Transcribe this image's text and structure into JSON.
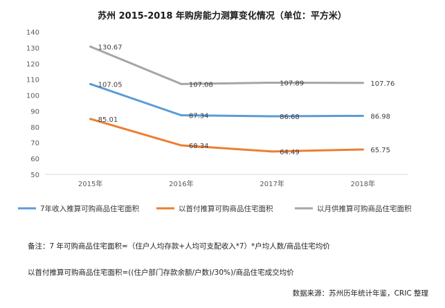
{
  "chart_data": {
    "type": "line",
    "title": "苏州 2015-2018 年购房能力测算变化情况（单位：平方米）",
    "categories": [
      "2015年",
      "2016年",
      "2017年",
      "2018年"
    ],
    "ylim": [
      50,
      140
    ],
    "yticks": [
      50,
      60,
      70,
      80,
      90,
      100,
      110,
      120,
      130,
      140
    ],
    "grid": false,
    "legend_position": "bottom",
    "series": [
      {
        "name": "7年收入推算可购商品住宅面积",
        "color": "#5b9bd5",
        "values": [
          107.05,
          87.34,
          86.68,
          86.98
        ],
        "labels": [
          "107.05",
          "87.34",
          "86.68",
          "86.98"
        ]
      },
      {
        "name": "以首付推算可购商品住宅面积",
        "color": "#ed7d31",
        "values": [
          85.01,
          68.34,
          64.49,
          65.75
        ],
        "labels": [
          "85.01",
          "68.34",
          "64.49",
          "65.75"
        ]
      },
      {
        "name": "以月供推算可购商品住宅面积",
        "color": "#a5a5a5",
        "values": [
          130.67,
          107.08,
          107.89,
          107.76
        ],
        "labels": [
          "130.67",
          "107.08",
          "107.89",
          "107.76"
        ]
      }
    ]
  },
  "notes": {
    "line1": "备注：7 年可购商品住宅面积=（住户人均存款+人均可支配收入*7）*户均人数/商品住宅均价",
    "line2": "以首付推算可购商品住宅面积=((住户部门存款余额/户数)/30%)/商品住宅成交均价",
    "source": "数据来源：苏州历年统计年鉴，CRIC 整理"
  }
}
